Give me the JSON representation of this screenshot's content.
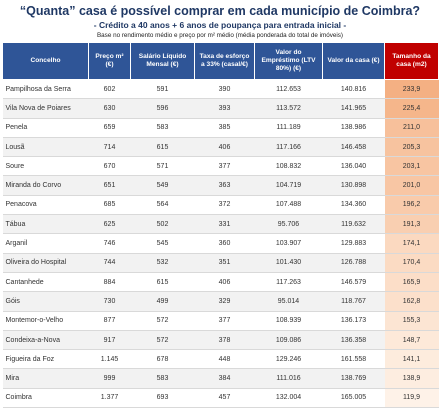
{
  "header": {
    "title": "“Quanta” casa é possível comprar em cada município de Coimbra?",
    "subtitle": "- Crédito a 40 anos + 6 anos de poupança para entrada inicial -",
    "note": "Base no rendimento médio e preço por m² médio (média ponderada do total de imóveis)"
  },
  "table": {
    "columns": [
      "Concelho",
      "Preço m² (€)",
      "Salário Líquido Mensal (€)",
      "Taxa de esforço a 33% (casal/€)",
      "Valor do Empréstimo (LTV 80%) (€)",
      "Valor da casa (€)",
      "Tamanho da casa (m2)"
    ],
    "rows": [
      [
        "Pampilhosa da Serra",
        "602",
        "591",
        "390",
        "112.653",
        "140.816",
        "233,9"
      ],
      [
        "Vila Nova de Poiares",
        "630",
        "596",
        "393",
        "113.572",
        "141.965",
        "225,4"
      ],
      [
        "Penela",
        "659",
        "583",
        "385",
        "111.189",
        "138.986",
        "211,0"
      ],
      [
        "Lousã",
        "714",
        "615",
        "406",
        "117.166",
        "146.458",
        "205,3"
      ],
      [
        "Soure",
        "670",
        "571",
        "377",
        "108.832",
        "136.040",
        "203,1"
      ],
      [
        "Miranda do Corvo",
        "651",
        "549",
        "363",
        "104.719",
        "130.898",
        "201,0"
      ],
      [
        "Penacova",
        "685",
        "564",
        "372",
        "107.488",
        "134.360",
        "196,2"
      ],
      [
        "Tábua",
        "625",
        "502",
        "331",
        "95.706",
        "119.632",
        "191,3"
      ],
      [
        "Arganil",
        "746",
        "545",
        "360",
        "103.907",
        "129.883",
        "174,1"
      ],
      [
        "Oliveira do Hospital",
        "744",
        "532",
        "351",
        "101.430",
        "126.788",
        "170,4"
      ],
      [
        "Cantanhede",
        "884",
        "615",
        "406",
        "117.263",
        "146.579",
        "165,9"
      ],
      [
        "Góis",
        "730",
        "499",
        "329",
        "95.014",
        "118.767",
        "162,8"
      ],
      [
        "Montemor-o-Velho",
        "877",
        "572",
        "377",
        "108.939",
        "136.173",
        "155,3"
      ],
      [
        "Condeixa-a-Nova",
        "917",
        "572",
        "378",
        "109.086",
        "136.358",
        "148,7"
      ],
      [
        "Figueira da Foz",
        "1.145",
        "678",
        "448",
        "129.246",
        "161.558",
        "141,1"
      ],
      [
        "Mira",
        "999",
        "583",
        "384",
        "111.016",
        "138.769",
        "138,9"
      ],
      [
        "Coimbra",
        "1.377",
        "693",
        "457",
        "132.004",
        "165.005",
        "119,9"
      ]
    ]
  }
}
